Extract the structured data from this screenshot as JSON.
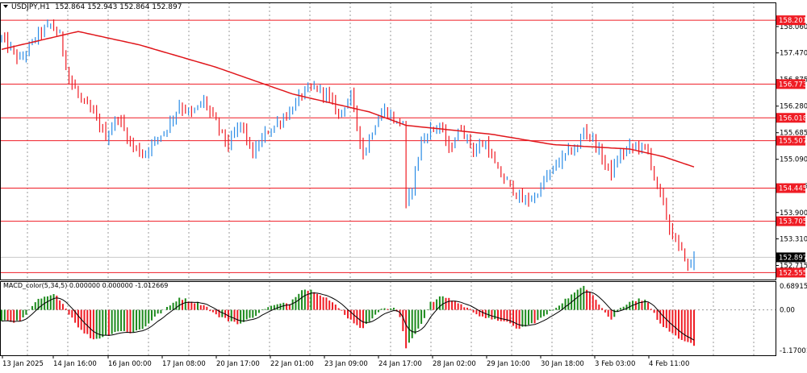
{
  "header": {
    "symbol_label": "USDJPY,H1",
    "ohlc": "152.864 152.943 152.864 152.897",
    "menu_icon": "triangle-down-icon"
  },
  "chart_data": [
    {
      "type": "candlestick",
      "title": "USDJPY,H1",
      "ylim": [
        152.4,
        158.6
      ],
      "y_ticks": [
        "158.060",
        "157.470",
        "156.875",
        "156.280",
        "155.685",
        "155.090",
        "154.495",
        "153.900",
        "153.310",
        "152.715"
      ],
      "x_ticks": [
        "13 Jan 2025",
        "14 Jan 16:00",
        "16 Jan 00:00",
        "17 Jan 08:00",
        "20 Jan 17:00",
        "22 Jan 01:00",
        "23 Jan 09:00",
        "24 Jan 17:00",
        "28 Jan 02:00",
        "29 Jan 10:00",
        "30 Jan 18:00",
        "3 Feb 03:00",
        "4 Feb 11:00"
      ],
      "horizontal_levels": [
        "158.201",
        "156.773",
        "156.018",
        "155.507",
        "154.445",
        "153.705",
        "152.555"
      ],
      "current_price": "152.897",
      "moving_average_color": "#e0161b",
      "bull_color": "#2a8ce6",
      "bear_color": "#ef1c24",
      "close_path": [
        [
          0,
          157.8
        ],
        [
          6,
          157.3
        ],
        [
          12,
          157.9
        ],
        [
          16,
          158.1
        ],
        [
          19,
          157.85
        ],
        [
          22,
          156.9
        ],
        [
          26,
          156.4
        ],
        [
          30,
          156.1
        ],
        [
          34,
          155.6
        ],
        [
          38,
          156.05
        ],
        [
          42,
          155.45
        ],
        [
          46,
          155.2
        ],
        [
          50,
          155.5
        ],
        [
          54,
          155.8
        ],
        [
          58,
          156.3
        ],
        [
          62,
          156.1
        ],
        [
          66,
          156.4
        ],
        [
          70,
          155.9
        ],
        [
          74,
          155.4
        ],
        [
          78,
          155.9
        ],
        [
          82,
          155.2
        ],
        [
          86,
          155.65
        ],
        [
          90,
          155.9
        ],
        [
          94,
          156.15
        ],
        [
          98,
          156.55
        ],
        [
          102,
          156.7
        ],
        [
          106,
          156.55
        ],
        [
          110,
          156.1
        ],
        [
          114,
          156.5
        ],
        [
          118,
          155.2
        ],
        [
          122,
          155.9
        ],
        [
          125,
          156.2
        ],
        [
          129,
          155.9
        ],
        [
          131,
          155.95
        ],
        [
          132,
          154.0
        ],
        [
          134,
          154.5
        ],
        [
          137,
          155.5
        ],
        [
          140,
          155.75
        ],
        [
          143,
          155.85
        ],
        [
          146,
          155.3
        ],
        [
          150,
          155.8
        ],
        [
          154,
          155.3
        ],
        [
          158,
          155.45
        ],
        [
          162,
          154.8
        ],
        [
          166,
          154.5
        ],
        [
          170,
          154.15
        ],
        [
          174,
          154.25
        ],
        [
          178,
          154.7
        ],
        [
          182,
          155.05
        ],
        [
          185,
          155.25
        ],
        [
          188,
          155.35
        ],
        [
          190,
          155.75
        ],
        [
          193,
          155.55
        ],
        [
          196,
          155.1
        ],
        [
          199,
          154.8
        ],
        [
          202,
          155.2
        ],
        [
          205,
          155.35
        ],
        [
          208,
          155.4
        ],
        [
          211,
          155.25
        ],
        [
          214,
          154.45
        ],
        [
          216,
          154.1
        ],
        [
          218,
          153.55
        ],
        [
          220,
          153.25
        ],
        [
          223,
          152.9
        ],
        [
          224,
          152.65
        ],
        [
          226,
          152.9
        ]
      ],
      "ma_path": [
        [
          0,
          157.55
        ],
        [
          25,
          157.95
        ],
        [
          45,
          157.65
        ],
        [
          70,
          157.15
        ],
        [
          95,
          156.55
        ],
        [
          120,
          156.15
        ],
        [
          132,
          155.85
        ],
        [
          160,
          155.65
        ],
        [
          180,
          155.42
        ],
        [
          205,
          155.32
        ],
        [
          216,
          155.15
        ],
        [
          226,
          154.92
        ]
      ]
    },
    {
      "type": "bar",
      "title": "MACD_color(5,34,5) 0.000000 0.000000 -1.012669",
      "ylim": [
        -1.170011,
        0.689154
      ],
      "y_ticks": [
        "0.689154",
        "0.00",
        "-1.170011"
      ],
      "positive_color": "#1c8a1c",
      "negative_color": "#ef1c24",
      "values_path": [
        [
          0,
          -0.3
        ],
        [
          6,
          -0.35
        ],
        [
          12,
          0.3
        ],
        [
          18,
          0.45
        ],
        [
          22,
          -0.1
        ],
        [
          26,
          -0.6
        ],
        [
          30,
          -0.85
        ],
        [
          34,
          -0.75
        ],
        [
          38,
          -0.6
        ],
        [
          42,
          -0.65
        ],
        [
          46,
          -0.55
        ],
        [
          50,
          -0.2
        ],
        [
          54,
          0.05
        ],
        [
          58,
          0.35
        ],
        [
          62,
          0.25
        ],
        [
          66,
          0.15
        ],
        [
          70,
          -0.15
        ],
        [
          74,
          -0.3
        ],
        [
          78,
          -0.4
        ],
        [
          82,
          -0.2
        ],
        [
          86,
          0.05
        ],
        [
          90,
          0.15
        ],
        [
          94,
          0.2
        ],
        [
          98,
          0.6
        ],
        [
          102,
          0.55
        ],
        [
          106,
          0.35
        ],
        [
          110,
          0.05
        ],
        [
          114,
          -0.3
        ],
        [
          118,
          -0.55
        ],
        [
          122,
          -0.1
        ],
        [
          125,
          0.05
        ],
        [
          128,
          0.05
        ],
        [
          130,
          -0.2
        ],
        [
          132,
          -1.1
        ],
        [
          134,
          -0.8
        ],
        [
          137,
          -0.4
        ],
        [
          140,
          0.2
        ],
        [
          144,
          0.4
        ],
        [
          148,
          0.25
        ],
        [
          152,
          0.05
        ],
        [
          156,
          -0.15
        ],
        [
          160,
          -0.3
        ],
        [
          164,
          -0.3
        ],
        [
          168,
          -0.55
        ],
        [
          172,
          -0.45
        ],
        [
          176,
          -0.25
        ],
        [
          180,
          0.0
        ],
        [
          184,
          0.3
        ],
        [
          188,
          0.55
        ],
        [
          190,
          0.7
        ],
        [
          193,
          0.45
        ],
        [
          196,
          0.05
        ],
        [
          199,
          -0.3
        ],
        [
          202,
          0.05
        ],
        [
          205,
          0.25
        ],
        [
          208,
          0.3
        ],
        [
          211,
          0.25
        ],
        [
          214,
          -0.3
        ],
        [
          218,
          -0.65
        ],
        [
          222,
          -0.9
        ],
        [
          226,
          -1.0
        ]
      ]
    }
  ]
}
